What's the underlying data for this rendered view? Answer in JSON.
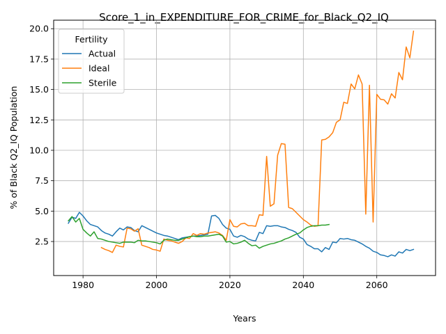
{
  "chart_data": {
    "type": "line",
    "title": "Score_1_in_EXPENDITURE_FOR_CRIME_for_Black_Q2_IQ",
    "xlabel": "Years",
    "ylabel": "% of Black Q2_IQ Population",
    "xlim": [
      1972,
      2076
    ],
    "ylim": [
      -0.3,
      20.7
    ],
    "xticks": [
      1980,
      2000,
      2020,
      2040,
      2060
    ],
    "yticks": [
      2.5,
      5.0,
      7.5,
      10.0,
      12.5,
      15.0,
      17.5,
      20.0
    ],
    "grid": true,
    "legend": {
      "title": "Fertility",
      "placement": "top-left"
    },
    "series": [
      {
        "name": "Actual",
        "color": "#1f77b4",
        "x": [
          1976,
          1977,
          1978,
          1979,
          1980,
          1981,
          1982,
          1983,
          1984,
          1985,
          1986,
          1987,
          1988,
          1989,
          1990,
          1991,
          1992,
          1993,
          1994,
          1995,
          1996,
          1997,
          1998,
          1999,
          2000,
          2001,
          2002,
          2003,
          2004,
          2005,
          2006,
          2007,
          2008,
          2009,
          2010,
          2011,
          2012,
          2013,
          2014,
          2015,
          2016,
          2017,
          2018,
          2019,
          2020,
          2021,
          2022,
          2023,
          2024,
          2025,
          2026,
          2027,
          2028,
          2029,
          2030,
          2031,
          2032,
          2033,
          2034,
          2035,
          2036,
          2037,
          2038,
          2039,
          2040,
          2041,
          2042,
          2043,
          2044,
          2045,
          2046,
          2047,
          2048,
          2049,
          2050,
          2051,
          2052,
          2053,
          2054,
          2055,
          2056,
          2057,
          2058,
          2059,
          2060,
          2061,
          2062,
          2063,
          2064,
          2065,
          2066,
          2067,
          2068,
          2069,
          2070
        ],
        "y": [
          4.0,
          4.5,
          4.4,
          4.9,
          4.6,
          4.2,
          3.9,
          3.8,
          3.7,
          3.4,
          3.2,
          3.1,
          2.95,
          3.3,
          3.6,
          3.45,
          3.7,
          3.65,
          3.4,
          3.3,
          3.8,
          3.65,
          3.5,
          3.35,
          3.2,
          3.1,
          3.0,
          2.95,
          2.85,
          2.75,
          2.65,
          2.8,
          2.85,
          2.9,
          2.95,
          2.95,
          3.0,
          3.05,
          3.1,
          4.6,
          4.65,
          4.4,
          3.9,
          3.6,
          3.5,
          2.95,
          2.85,
          3.0,
          2.9,
          2.7,
          2.6,
          2.55,
          3.25,
          3.15,
          3.8,
          3.75,
          3.8,
          3.8,
          3.7,
          3.65,
          3.5,
          3.4,
          3.25,
          2.85,
          2.7,
          2.25,
          2.1,
          1.9,
          1.9,
          1.65,
          2.0,
          1.85,
          2.45,
          2.4,
          2.75,
          2.7,
          2.75,
          2.65,
          2.6,
          2.45,
          2.3,
          2.1,
          1.95,
          1.7,
          1.6,
          1.4,
          1.35,
          1.25,
          1.4,
          1.3,
          1.65,
          1.55,
          1.85,
          1.75,
          1.85
        ]
      },
      {
        "name": "Ideal",
        "color": "#ff7f0e",
        "x": [
          1985,
          1986,
          1987,
          1988,
          1989,
          1990,
          1991,
          1992,
          1993,
          1994,
          1995,
          1996,
          1997,
          1998,
          1999,
          2000,
          2001,
          2002,
          2003,
          2004,
          2005,
          2006,
          2007,
          2008,
          2009,
          2010,
          2011,
          2012,
          2013,
          2014,
          2015,
          2016,
          2017,
          2018,
          2019,
          2020,
          2021,
          2022,
          2023,
          2024,
          2025,
          2026,
          2027,
          2028,
          2029,
          2030,
          2031,
          2032,
          2033,
          2034,
          2035,
          2036,
          2037,
          2038,
          2039,
          2040,
          2041,
          2042,
          2043,
          2044,
          2045,
          2046,
          2047,
          2048,
          2049,
          2050,
          2051,
          2052,
          2053,
          2054,
          2055,
          2056,
          2057,
          2058,
          2059,
          2060,
          2061,
          2062,
          2063,
          2064,
          2065,
          2066,
          2067,
          2068,
          2069,
          2070
        ],
        "y": [
          2.0,
          1.85,
          1.75,
          1.6,
          2.2,
          2.1,
          2.05,
          3.6,
          3.55,
          3.35,
          3.55,
          2.2,
          2.1,
          2.0,
          1.85,
          1.8,
          1.7,
          2.7,
          2.6,
          2.55,
          2.45,
          2.35,
          2.5,
          2.8,
          2.75,
          3.15,
          3.0,
          3.15,
          3.1,
          3.2,
          3.25,
          3.3,
          3.2,
          3.0,
          2.6,
          4.3,
          3.75,
          3.7,
          3.95,
          4.0,
          3.8,
          3.8,
          3.75,
          4.7,
          4.65,
          9.5,
          5.4,
          5.6,
          9.6,
          10.55,
          10.5,
          5.3,
          5.2,
          4.9,
          4.6,
          4.3,
          4.1,
          3.85,
          3.75,
          3.8,
          10.85,
          10.9,
          11.1,
          11.45,
          12.3,
          12.5,
          13.95,
          13.85,
          15.45,
          15.05,
          16.2,
          15.45,
          4.75,
          15.35,
          4.1,
          14.6,
          14.2,
          14.15,
          13.8,
          14.65,
          14.3,
          16.4,
          15.8,
          18.5,
          17.6,
          19.8
        ]
      },
      {
        "name": "Sterile",
        "color": "#2ca02c",
        "x": [
          1976,
          1977,
          1978,
          1979,
          1980,
          1981,
          1982,
          1983,
          1984,
          1985,
          1986,
          1987,
          1988,
          1989,
          1990,
          1991,
          1992,
          1993,
          1994,
          1995,
          1996,
          1997,
          1998,
          1999,
          2000,
          2001,
          2002,
          2003,
          2004,
          2005,
          2006,
          2007,
          2008,
          2009,
          2010,
          2011,
          2012,
          2013,
          2014,
          2015,
          2016,
          2017,
          2018,
          2019,
          2020,
          2021,
          2022,
          2023,
          2024,
          2025,
          2026,
          2027,
          2028,
          2029,
          2030,
          2031,
          2032,
          2033,
          2034,
          2035,
          2036,
          2037,
          2038,
          2039,
          2040,
          2041,
          2042,
          2043,
          2044,
          2045,
          2046,
          2047
        ],
        "y": [
          4.2,
          4.55,
          4.1,
          4.4,
          3.5,
          3.2,
          2.95,
          3.3,
          2.75,
          2.7,
          2.6,
          2.5,
          2.45,
          2.4,
          2.35,
          2.45,
          2.45,
          2.45,
          2.4,
          2.6,
          2.55,
          2.55,
          2.5,
          2.45,
          2.4,
          2.3,
          2.6,
          2.7,
          2.65,
          2.6,
          2.6,
          2.7,
          2.8,
          2.9,
          2.95,
          2.9,
          2.9,
          2.95,
          2.95,
          3.0,
          3.05,
          3.1,
          2.95,
          2.45,
          2.5,
          2.3,
          2.35,
          2.45,
          2.6,
          2.35,
          2.15,
          2.2,
          1.95,
          2.1,
          2.2,
          2.3,
          2.35,
          2.45,
          2.55,
          2.7,
          2.8,
          2.95,
          3.1,
          3.2,
          3.45,
          3.65,
          3.75,
          3.8,
          3.8,
          3.85,
          3.85,
          3.9
        ]
      }
    ]
  }
}
